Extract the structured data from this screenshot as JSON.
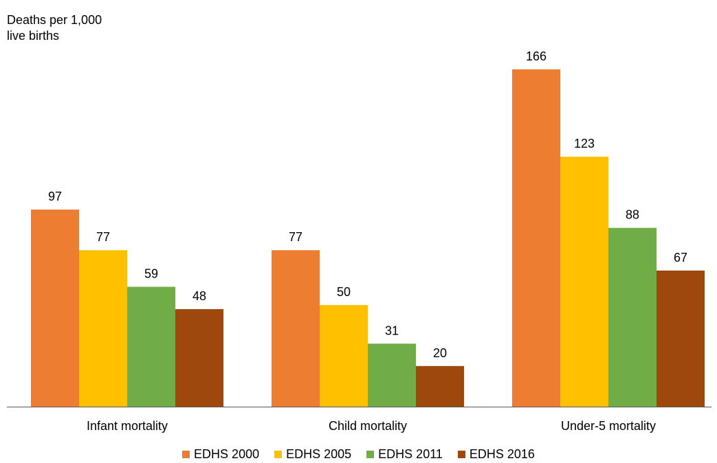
{
  "chart_data": {
    "type": "bar",
    "ylabel_line1": "Deaths per 1,000",
    "ylabel_line2": "live births",
    "categories": [
      "Infant mortality",
      "Child mortality",
      "Under-5 mortality"
    ],
    "series": [
      {
        "name": "EDHS 2000",
        "color": "#ED7D31",
        "values": [
          97,
          77,
          166
        ]
      },
      {
        "name": "EDHS 2005",
        "color": "#FFC000",
        "values": [
          77,
          50,
          123
        ]
      },
      {
        "name": "EDHS 2011",
        "color": "#70AD47",
        "values": [
          59,
          31,
          88
        ]
      },
      {
        "name": "EDHS 2016",
        "color": "#9E480E",
        "values": [
          48,
          20,
          67
        ]
      }
    ],
    "ylim": [
      0,
      166
    ],
    "grid": false,
    "legend_position": "bottom"
  }
}
